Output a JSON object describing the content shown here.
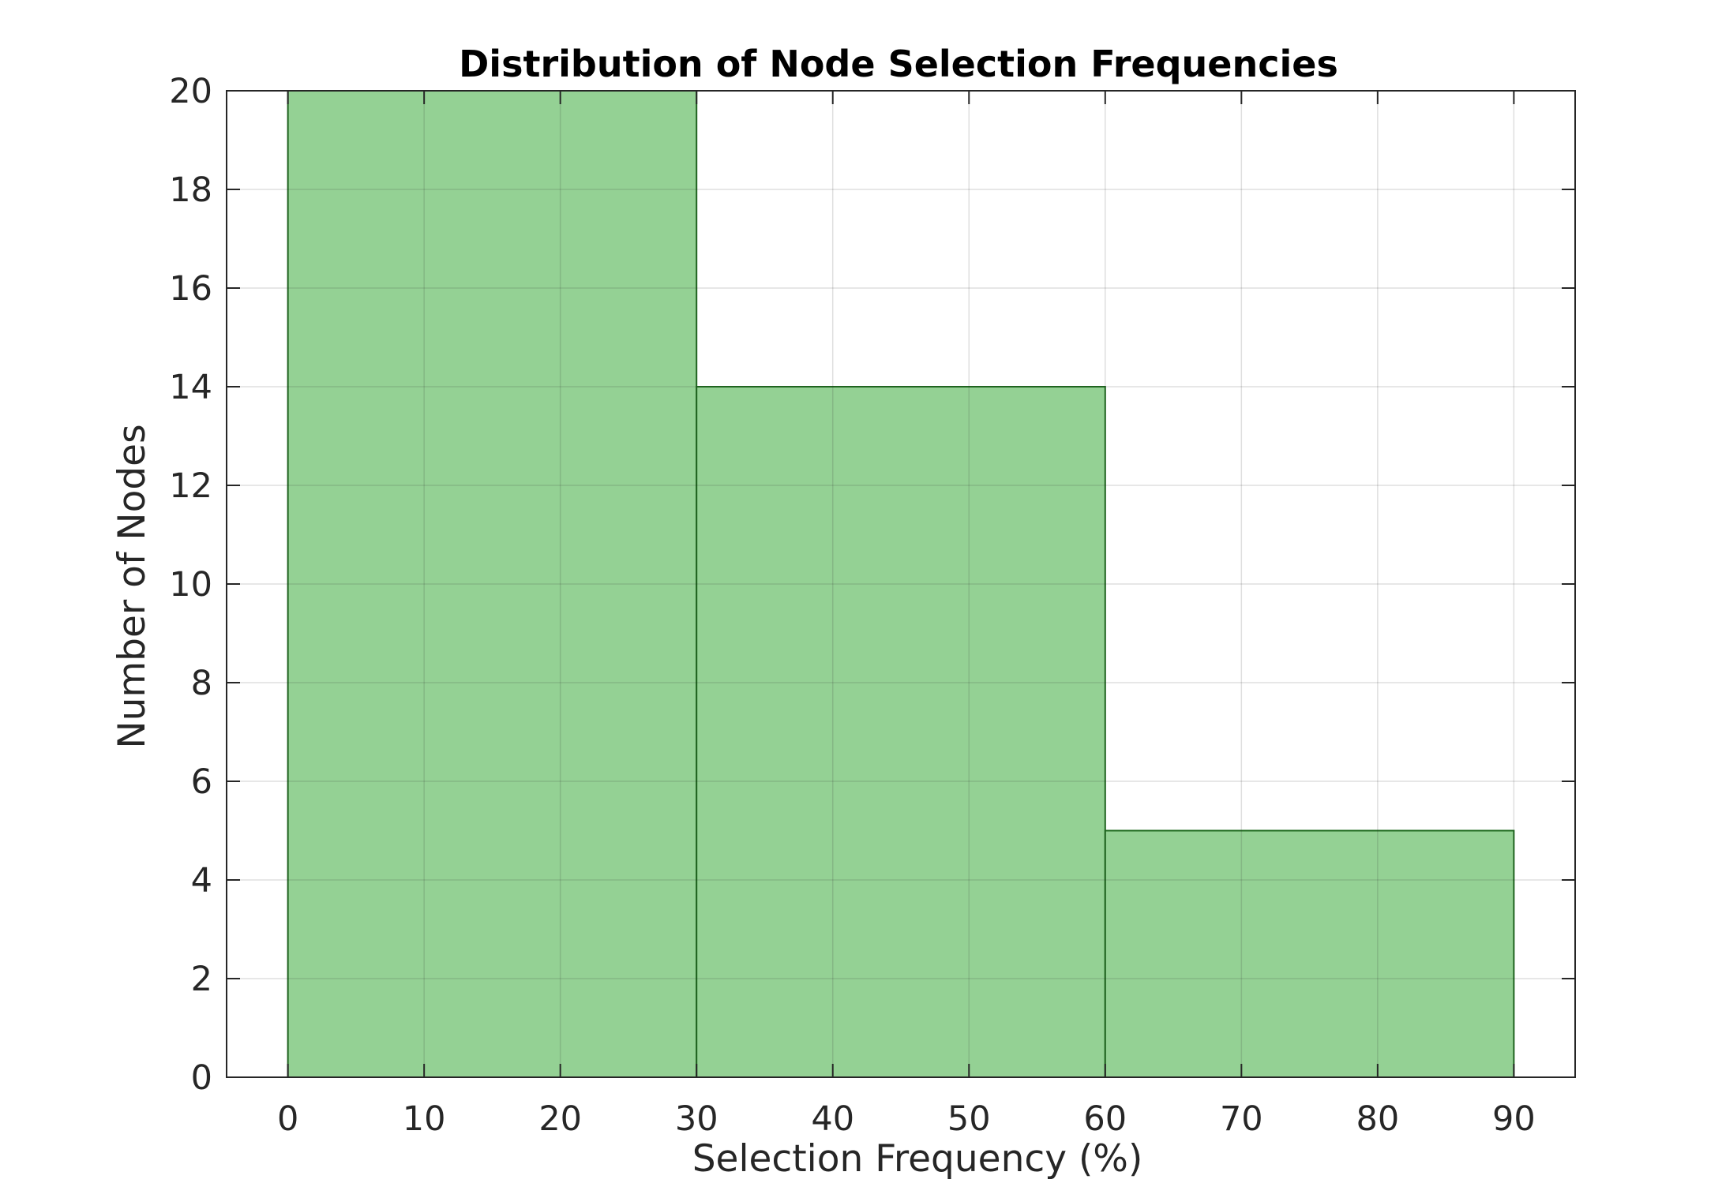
{
  "chart_data": {
    "type": "bar",
    "title": "Distribution of Node Selection Frequencies",
    "xlabel": "Selection Frequency (%)",
    "ylabel": "Number of Nodes",
    "bins": [
      {
        "start": 0,
        "end": 30,
        "count": 20
      },
      {
        "start": 30,
        "end": 60,
        "count": 14
      },
      {
        "start": 60,
        "end": 90,
        "count": 5
      }
    ],
    "xlim": [
      -4.5,
      94.5
    ],
    "ylim": [
      0,
      20
    ],
    "xticks": [
      0,
      10,
      20,
      30,
      40,
      50,
      60,
      70,
      80,
      90
    ],
    "yticks": [
      0,
      2,
      4,
      6,
      8,
      10,
      12,
      14,
      16,
      18,
      20
    ],
    "grid": true,
    "bar_fill": "#94d194",
    "bar_edge": "#1f6b1f"
  }
}
